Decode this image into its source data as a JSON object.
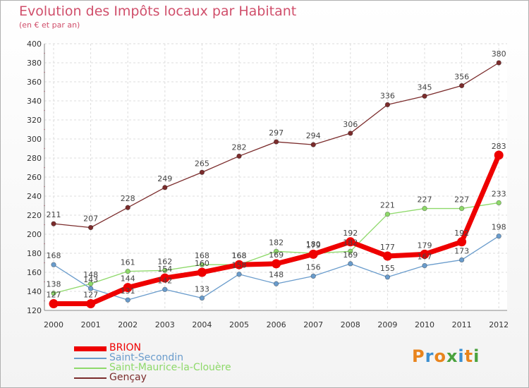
{
  "title": "Evolution des Impôts locaux par Habitant",
  "subtitle": "(en € et par an)",
  "logo": {
    "text": "Proxiti",
    "colors": [
      "#e8841d",
      "#3b8fd1",
      "#e8841d",
      "#4aa23e",
      "#3b8fd1",
      "#e8841d",
      "#4aa23e"
    ]
  },
  "chart_data": {
    "type": "line",
    "x": [
      2000,
      2001,
      2002,
      2003,
      2004,
      2005,
      2006,
      2007,
      2008,
      2009,
      2010,
      2011,
      2012
    ],
    "ylim": [
      120,
      400
    ],
    "yticks": [
      120,
      140,
      160,
      180,
      200,
      220,
      240,
      260,
      280,
      300,
      320,
      340,
      360,
      380,
      400
    ],
    "grid": true,
    "legend": "bottom-left",
    "series": [
      {
        "name": "Gençay",
        "color": "#7b2c2c",
        "values": [
          211,
          207,
          228,
          249,
          265,
          282,
          297,
          294,
          306,
          336,
          345,
          356,
          380
        ]
      },
      {
        "name": "Saint-Maurice-la-Clouère",
        "color": "#8ed96a",
        "values": [
          138,
          148,
          161,
          162,
          168,
          168,
          182,
          180,
          182,
          221,
          227,
          227,
          233
        ]
      },
      {
        "name": "Saint-Secondin",
        "color": "#6a9ccc",
        "values": [
          168,
          143,
          131,
          142,
          133,
          158,
          148,
          156,
          169,
          155,
          167,
          173,
          198
        ]
      },
      {
        "name": "BRION",
        "color": "#ee0000",
        "values": [
          127,
          127,
          144,
          154,
          160,
          168,
          169,
          179,
          192,
          177,
          179,
          192,
          283
        ]
      }
    ]
  },
  "legend_items": [
    {
      "label": "BRION",
      "color": "#ee0000",
      "weight": 7
    },
    {
      "label": "Saint-Secondin",
      "color": "#6a9ccc",
      "weight": 2
    },
    {
      "label": "Saint-Maurice-la-Clouère",
      "color": "#8ed96a",
      "weight": 2
    },
    {
      "label": "Gençay",
      "color": "#7b2c2c",
      "weight": 2
    }
  ]
}
